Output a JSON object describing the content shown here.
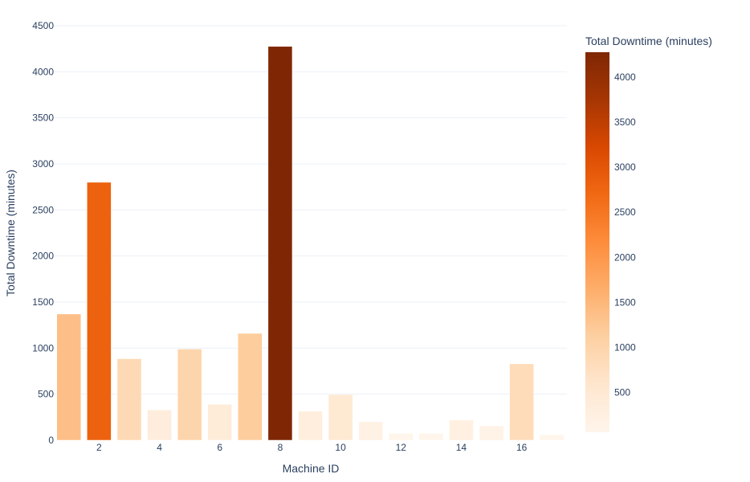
{
  "chart_data": {
    "type": "bar",
    "xlabel": "Machine ID",
    "ylabel": "Total Downtime (minutes)",
    "x": [
      1,
      2,
      3,
      4,
      5,
      6,
      7,
      8,
      9,
      10,
      11,
      12,
      13,
      14,
      15,
      16,
      17
    ],
    "values": [
      1370,
      2800,
      885,
      330,
      990,
      390,
      1160,
      4275,
      315,
      495,
      200,
      75,
      75,
      220,
      155,
      830,
      60
    ],
    "x_ticks": [
      2,
      4,
      6,
      8,
      10,
      12,
      14,
      16
    ],
    "y_ticks": [
      0,
      500,
      1000,
      1500,
      2000,
      2500,
      3000,
      3500,
      4000,
      4500
    ],
    "ylim": [
      0,
      4500
    ],
    "xlim": [
      0.5,
      17.5
    ],
    "grid": true,
    "colorscale": "Oranges",
    "colorbar": {
      "title": "Total Downtime (minutes)",
      "ticks": [
        500,
        1000,
        1500,
        2000,
        2500,
        3000,
        3500,
        4000
      ],
      "range": [
        60,
        4275
      ]
    },
    "colors": {
      "grid": "#ebf0f8",
      "text": "#2a3f5f",
      "bar_outline": "#ffffff"
    }
  }
}
